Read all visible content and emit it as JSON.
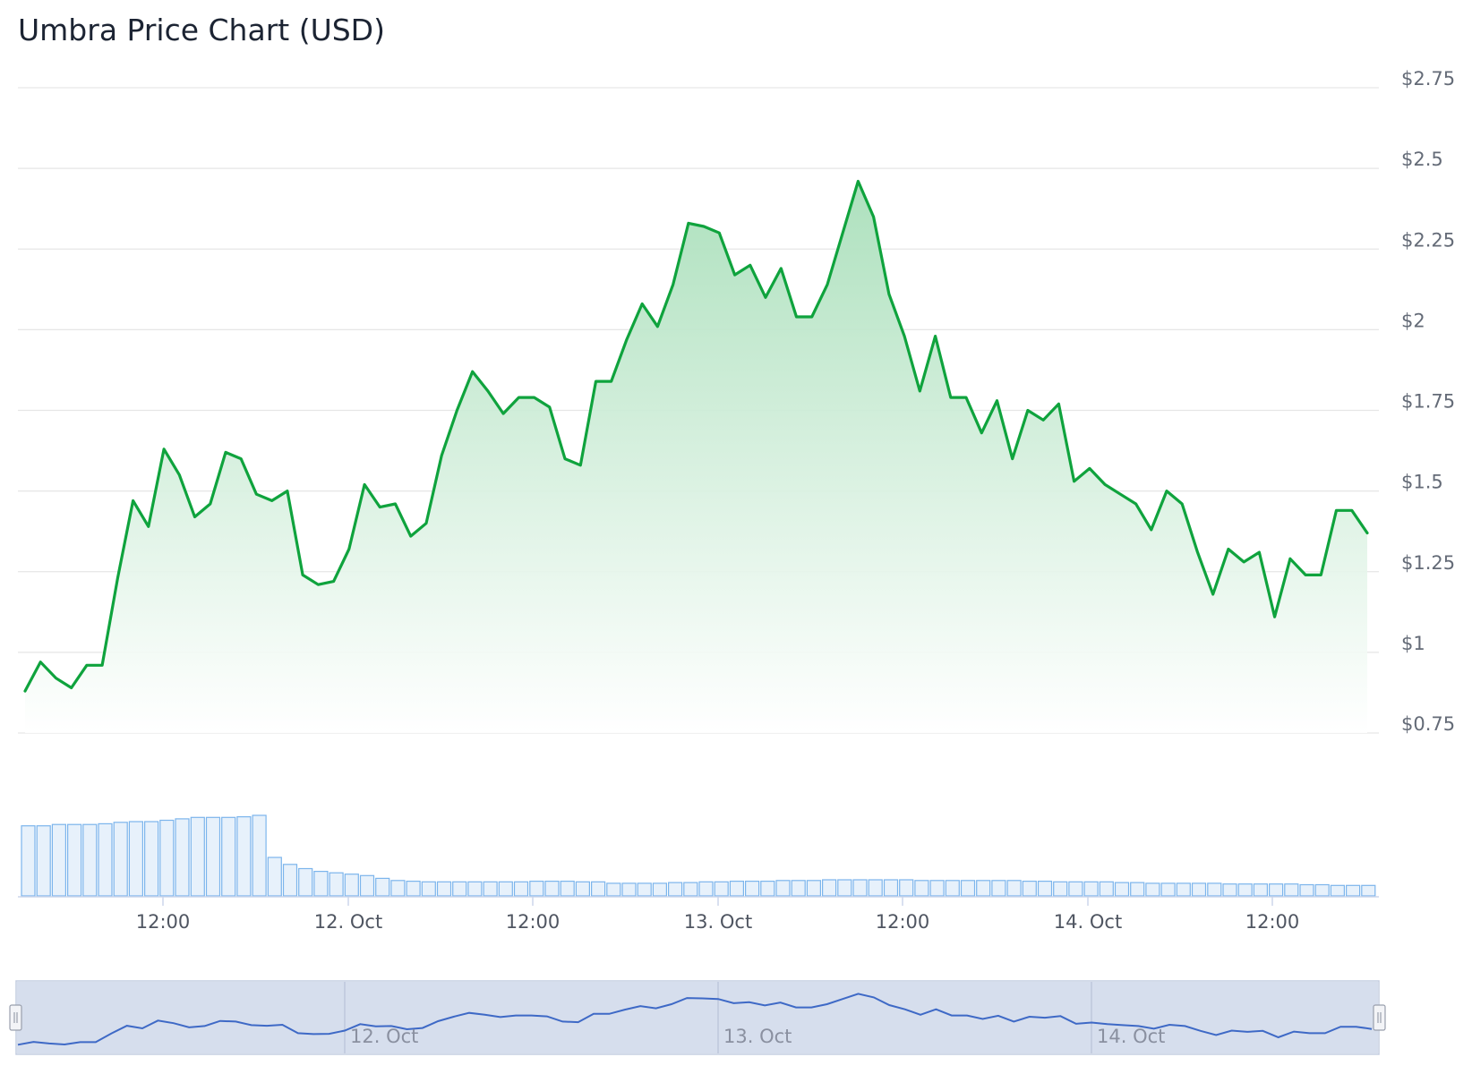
{
  "chart_data": {
    "type": "area",
    "title": "Umbra Price Chart (USD)",
    "x_axis_labels": [
      "12:00",
      "12. Oct",
      "12:00",
      "13. Oct",
      "12:00",
      "14. Oct",
      "12:00"
    ],
    "navigator_labels": [
      "12. Oct",
      "13. Oct",
      "14. Oct"
    ],
    "y_axis": {
      "ticks": [
        "$0.75",
        "$1",
        "$1.25",
        "$1.5",
        "$1.75",
        "$2",
        "$2.25",
        "$2.5",
        "$2.75"
      ],
      "ylim": [
        0.75,
        2.75
      ],
      "side": "right"
    },
    "grid": true,
    "series": [
      {
        "color": "#0fa33d",
        "fill": "#c2e8ce",
        "values": [
          0.88,
          0.97,
          0.92,
          0.89,
          0.96,
          0.96,
          1.23,
          1.47,
          1.39,
          1.63,
          1.55,
          1.42,
          1.46,
          1.62,
          1.6,
          1.49,
          1.47,
          1.5,
          1.24,
          1.21,
          1.22,
          1.32,
          1.52,
          1.45,
          1.46,
          1.36,
          1.4,
          1.61,
          1.75,
          1.87,
          1.81,
          1.74,
          1.79,
          1.79,
          1.76,
          1.6,
          1.58,
          1.84,
          1.84,
          1.97,
          2.08,
          2.01,
          2.14,
          2.33,
          2.32,
          2.3,
          2.17,
          2.2,
          2.1,
          2.19,
          2.04,
          2.04,
          2.14,
          2.3,
          2.46,
          2.35,
          2.11,
          1.98,
          1.81,
          1.98,
          1.79,
          1.79,
          1.68,
          1.78,
          1.6,
          1.75,
          1.72,
          1.77,
          1.53,
          1.57,
          1.52,
          1.49,
          1.46,
          1.38,
          1.5,
          1.46,
          1.31,
          1.18,
          1.32,
          1.28,
          1.31,
          1.11,
          1.29,
          1.24,
          1.24,
          1.44,
          1.44,
          1.37
        ]
      }
    ],
    "volume": {
      "color": "#7cb5ec",
      "relative_values": [
        1.0,
        1.0,
        1.02,
        1.02,
        1.02,
        1.03,
        1.05,
        1.06,
        1.06,
        1.08,
        1.1,
        1.12,
        1.12,
        1.12,
        1.13,
        1.15,
        0.55,
        0.45,
        0.39,
        0.35,
        0.33,
        0.31,
        0.29,
        0.25,
        0.22,
        0.21,
        0.2,
        0.2,
        0.2,
        0.2,
        0.2,
        0.2,
        0.2,
        0.21,
        0.21,
        0.21,
        0.2,
        0.2,
        0.18,
        0.18,
        0.18,
        0.18,
        0.19,
        0.19,
        0.2,
        0.2,
        0.21,
        0.21,
        0.21,
        0.22,
        0.22,
        0.22,
        0.23,
        0.23,
        0.23,
        0.23,
        0.23,
        0.23,
        0.22,
        0.22,
        0.22,
        0.22,
        0.22,
        0.22,
        0.22,
        0.21,
        0.21,
        0.2,
        0.2,
        0.2,
        0.2,
        0.19,
        0.19,
        0.18,
        0.18,
        0.18,
        0.18,
        0.18,
        0.17,
        0.17,
        0.17,
        0.17,
        0.17,
        0.16,
        0.16,
        0.15,
        0.15,
        0.15
      ]
    }
  }
}
